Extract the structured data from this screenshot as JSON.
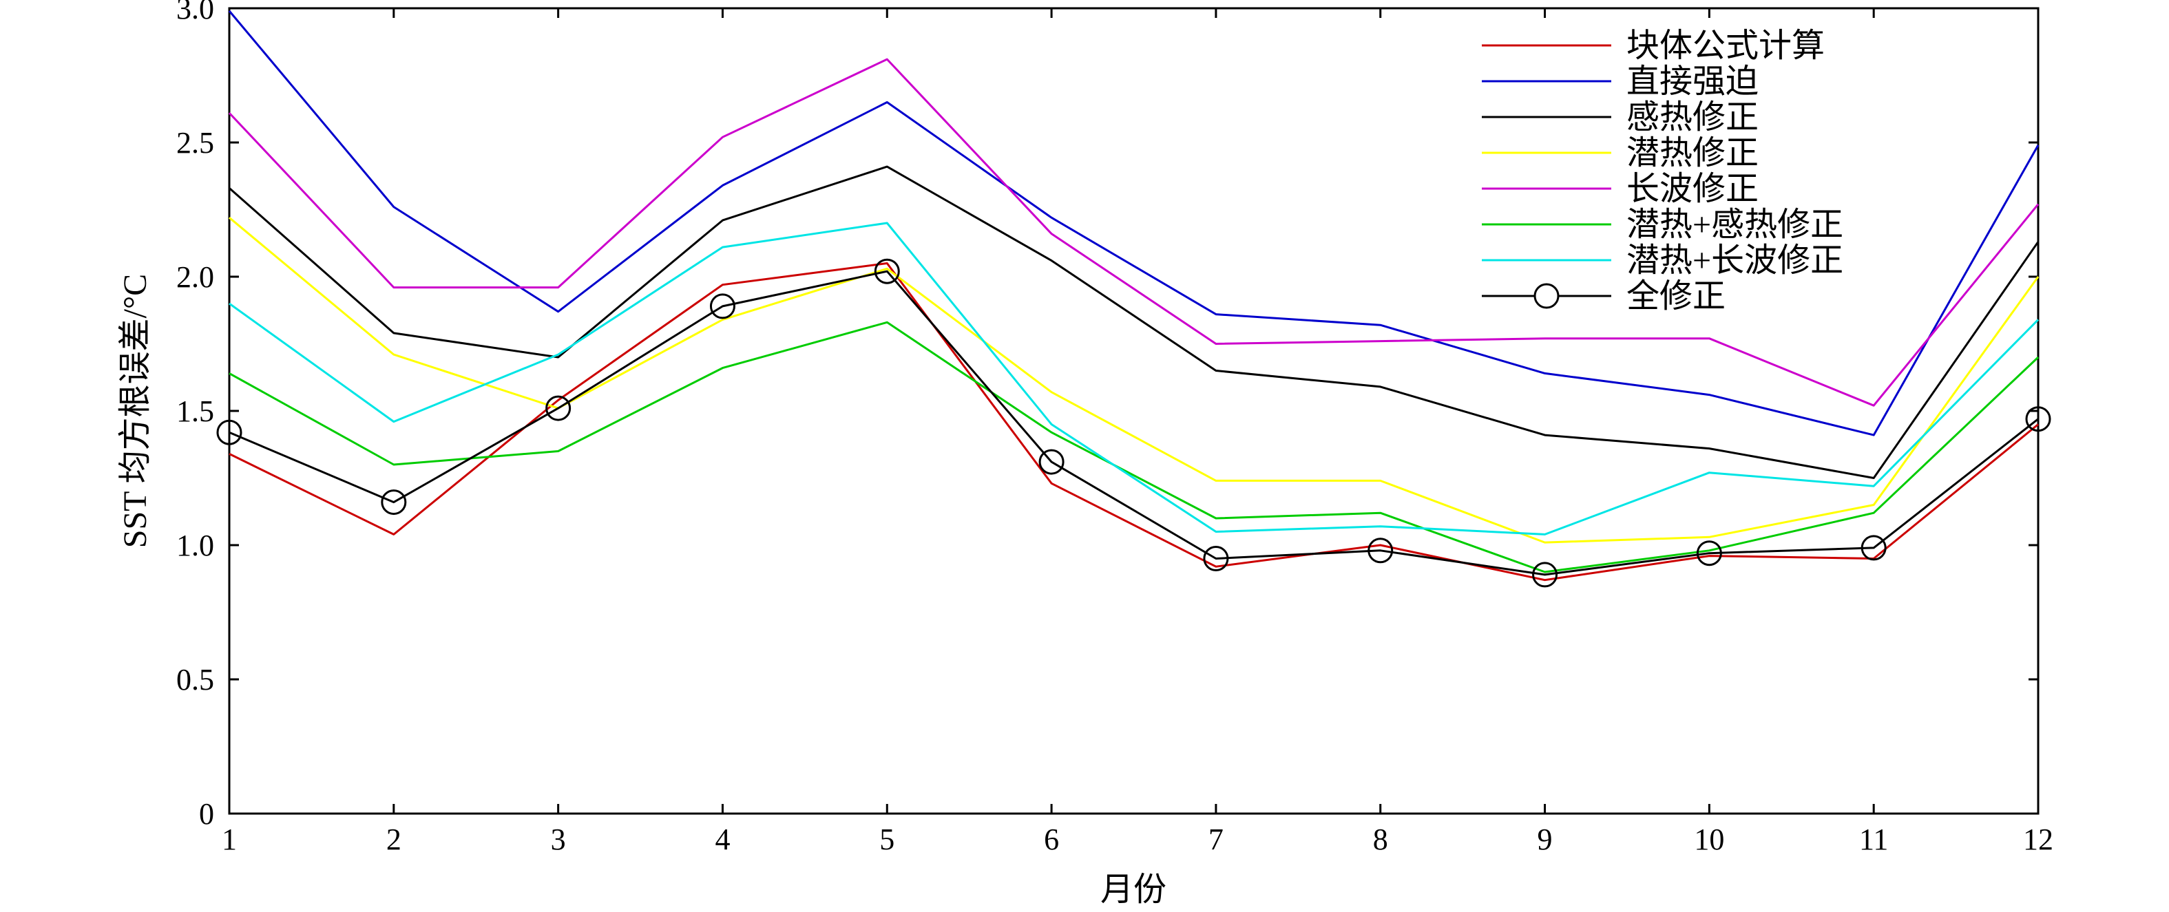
{
  "chart_data": {
    "type": "line",
    "title": "",
    "xlabel": "月份",
    "ylabel": "SST 均方根误差/°C",
    "x": [
      1,
      2,
      3,
      4,
      5,
      6,
      7,
      8,
      9,
      10,
      11,
      12
    ],
    "x_tick_labels": [
      "1",
      "2",
      "3",
      "4",
      "5",
      "6",
      "7",
      "8",
      "9",
      "10",
      "11",
      "12"
    ],
    "xlim": [
      1,
      12
    ],
    "ylim": [
      0,
      3.0
    ],
    "y_ticks": [
      0,
      0.5,
      1.0,
      1.5,
      2.0,
      2.5,
      3.0
    ],
    "y_tick_labels": [
      "0",
      "0.5",
      "1.0",
      "1.5",
      "2.0",
      "2.5",
      "3.0"
    ],
    "grid": false,
    "legend_position": "top-right",
    "series": [
      {
        "name": "块体公式计算",
        "color": "#cc0000",
        "marker": "none",
        "values": [
          1.34,
          1.04,
          1.54,
          1.97,
          2.05,
          1.23,
          0.92,
          1.0,
          0.87,
          0.96,
          0.95,
          1.45
        ]
      },
      {
        "name": "直接强迫",
        "color": "#0000cc",
        "marker": "none",
        "values": [
          2.99,
          2.26,
          1.87,
          2.34,
          2.65,
          2.22,
          1.86,
          1.82,
          1.64,
          1.56,
          1.41,
          2.49
        ]
      },
      {
        "name": "感热修正",
        "color": "#000000",
        "marker": "none",
        "values": [
          2.33,
          1.79,
          1.7,
          2.21,
          2.41,
          2.06,
          1.65,
          1.59,
          1.41,
          1.36,
          1.25,
          2.13
        ]
      },
      {
        "name": "潜热修正",
        "color": "#ffff00",
        "marker": "none",
        "values": [
          2.22,
          1.71,
          1.51,
          1.84,
          2.03,
          1.57,
          1.24,
          1.24,
          1.01,
          1.03,
          1.15,
          2.0
        ]
      },
      {
        "name": "长波修正",
        "color": "#cc00cc",
        "marker": "none",
        "values": [
          2.61,
          1.96,
          1.96,
          2.52,
          2.81,
          2.16,
          1.75,
          1.76,
          1.77,
          1.77,
          1.52,
          2.27
        ]
      },
      {
        "name": "潜热+感热修正",
        "color": "#00cc00",
        "marker": "none",
        "values": [
          1.64,
          1.3,
          1.35,
          1.66,
          1.83,
          1.42,
          1.1,
          1.12,
          0.9,
          0.98,
          1.12,
          1.7
        ]
      },
      {
        "name": "潜热+长波修正",
        "color": "#00e5e5",
        "marker": "none",
        "values": [
          1.9,
          1.46,
          1.71,
          2.11,
          2.2,
          1.45,
          1.05,
          1.07,
          1.04,
          1.27,
          1.22,
          1.84
        ]
      },
      {
        "name": "全修正",
        "color": "#000000",
        "marker": "circle",
        "values": [
          1.42,
          1.16,
          1.51,
          1.89,
          2.02,
          1.31,
          0.95,
          0.98,
          0.89,
          0.97,
          0.99,
          1.47
        ]
      }
    ]
  }
}
